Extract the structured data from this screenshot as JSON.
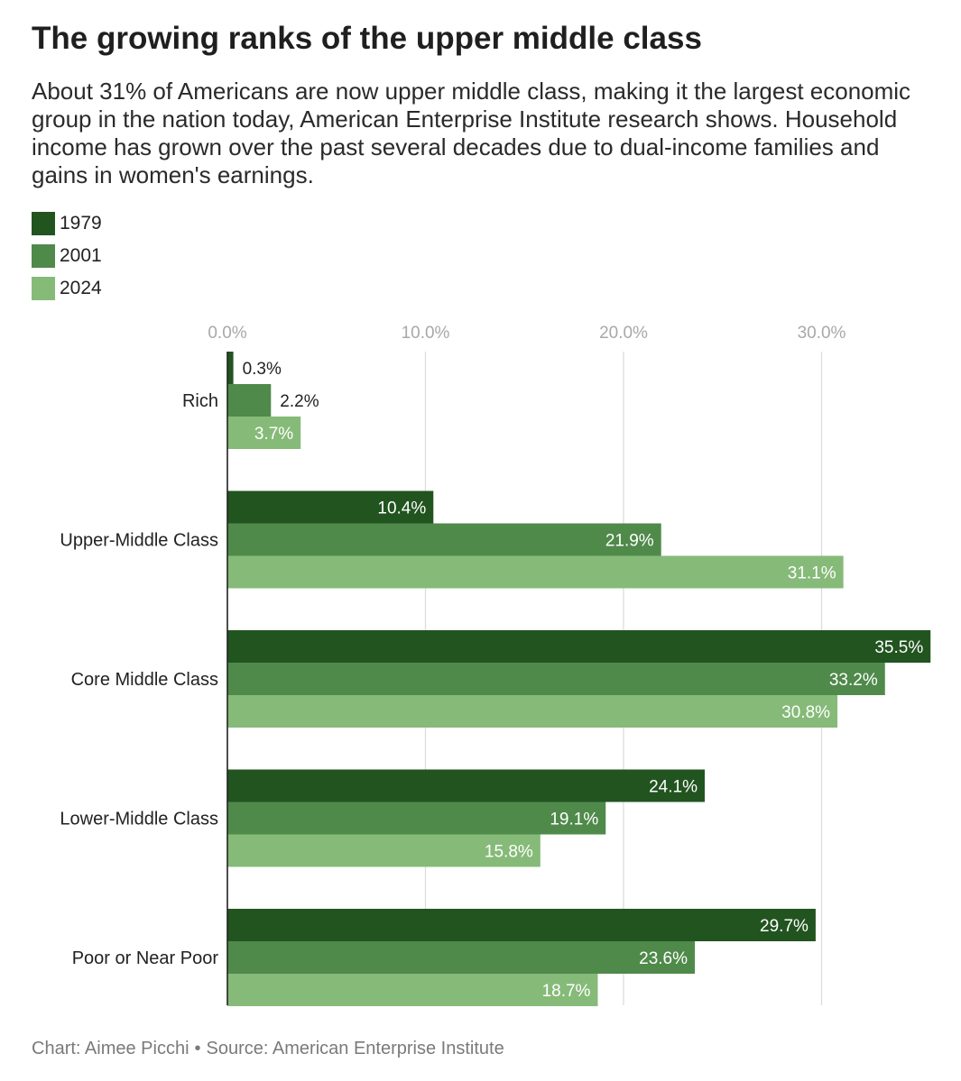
{
  "title": "The growing ranks of the upper middle class",
  "subtitle": "About 31% of Americans are now upper middle class, making it the largest economic group in the nation today, American Enterprise Institute research shows. Household income has grown over the past several decades due to dual-income families and gains in women's earnings.",
  "footer": {
    "credit": "Chart: Aimee Picchi",
    "separator": "•",
    "source": "Source: American Enterprise Institute"
  },
  "colors": {
    "1979": "#225420",
    "2001": "#4f8a4a",
    "2024": "#86ba78",
    "axis_tick": "#a8a8a8",
    "grid": "#dcdcdc"
  },
  "chart_data": {
    "type": "bar",
    "orientation": "horizontal",
    "categories": [
      "Rich",
      "Upper-Middle Class",
      "Core Middle Class",
      "Lower-Middle Class",
      "Poor or Near Poor"
    ],
    "series": [
      {
        "name": "1979",
        "values": [
          0.3,
          10.4,
          35.5,
          24.1,
          29.7
        ],
        "labels": [
          "0.3%",
          "10.4%",
          "35.5%",
          "24.1%",
          "29.7%"
        ]
      },
      {
        "name": "2001",
        "values": [
          2.2,
          21.9,
          33.2,
          19.1,
          23.6
        ],
        "labels": [
          "2.2%",
          "21.9%",
          "33.2%",
          "19.1%",
          "23.6%"
        ]
      },
      {
        "name": "2024",
        "values": [
          3.7,
          31.1,
          30.8,
          15.8,
          18.7
        ],
        "labels": [
          "3.7%",
          "31.1%",
          "30.8%",
          "15.8%",
          "18.7%"
        ]
      }
    ],
    "xticks": [
      0,
      10,
      20,
      30
    ],
    "xtick_labels": [
      "0.0%",
      "10.0%",
      "20.0%",
      "30.0%"
    ],
    "xlim": [
      0,
      35.5
    ],
    "grid": true,
    "legend_position": "top-left"
  }
}
